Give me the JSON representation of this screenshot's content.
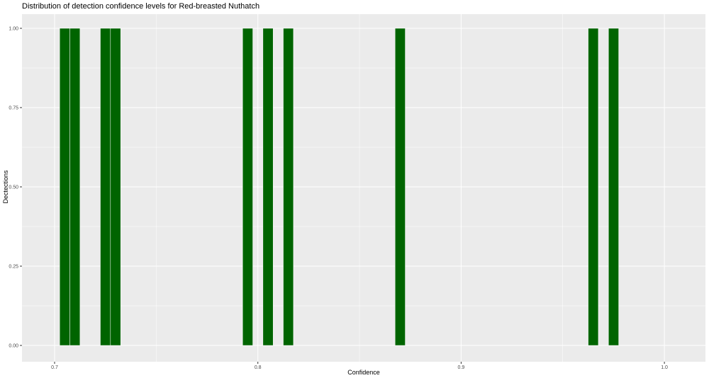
{
  "chart_data": {
    "type": "bar",
    "title": "Distribution of detection confidence levels for Red-breasted Nuthatch",
    "xlabel": "Confidence",
    "ylabel": "Dectections",
    "bin_width": 0.005,
    "bins": [
      {
        "x": 0.705,
        "count": 1
      },
      {
        "x": 0.71,
        "count": 1
      },
      {
        "x": 0.725,
        "count": 1
      },
      {
        "x": 0.73,
        "count": 1
      },
      {
        "x": 0.795,
        "count": 1
      },
      {
        "x": 0.805,
        "count": 1
      },
      {
        "x": 0.815,
        "count": 1
      },
      {
        "x": 0.87,
        "count": 1
      },
      {
        "x": 0.965,
        "count": 1
      },
      {
        "x": 0.975,
        "count": 1
      }
    ],
    "xlim": [
      0.685,
      1.02
    ],
    "ylim": [
      -0.05,
      1.05
    ],
    "x_ticks": [
      "0.7",
      "0.8",
      "0.9",
      "1.0"
    ],
    "x_tick_values": [
      0.7,
      0.8,
      0.9,
      1.0
    ],
    "y_ticks": [
      "0.00",
      "0.25",
      "0.50",
      "0.75",
      "1.00"
    ],
    "y_tick_values": [
      0,
      0.25,
      0.5,
      0.75,
      1.0
    ],
    "grid": true,
    "bar_color": "#006400",
    "panel_color": "#EBEBEB"
  }
}
